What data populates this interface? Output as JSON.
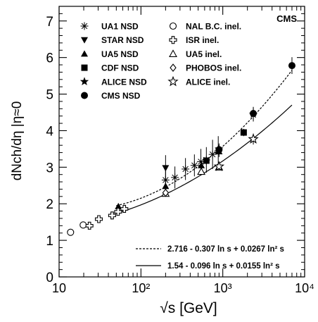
{
  "chart_data": {
    "type": "scatter",
    "experiment_label": "CMS",
    "xlabel": "√s [GeV]",
    "ylabel": "dNch/dη |η≈0",
    "xscale": "log",
    "xlim": [
      10,
      10000
    ],
    "ylim": [
      0,
      7.4
    ],
    "x_ticks": [
      10,
      100,
      1000,
      10000
    ],
    "x_tick_labels": [
      "10",
      "10²",
      "10³",
      "10⁴"
    ],
    "y_ticks": [
      0,
      1,
      2,
      3,
      4,
      5,
      6,
      7
    ],
    "y_tick_labels": [
      "0",
      "1",
      "2",
      "3",
      "4",
      "5",
      "6",
      "7"
    ],
    "legend_position": "top-left",
    "series": [
      {
        "name": "UA1 NSD",
        "marker": "asterisk",
        "x": [
          200,
          260,
          350,
          450,
          540,
          630,
          750,
          880
        ],
        "y": [
          2.65,
          2.72,
          2.95,
          3.05,
          3.15,
          3.2,
          3.35,
          3.45
        ],
        "err": [
          0.3,
          0.3,
          0.3,
          0.3,
          0.35,
          0.35,
          0.4,
          0.4
        ]
      },
      {
        "name": "STAR NSD",
        "marker": "triangle-down",
        "x": [
          200
        ],
        "y": [
          2.98
        ],
        "err": [
          0.35
        ]
      },
      {
        "name": "UA5 NSD",
        "marker": "triangle-up",
        "x": [
          53,
          200,
          546,
          900
        ],
        "y": [
          1.93,
          2.48,
          3.05,
          3.43
        ],
        "err": [
          0.05,
          0.1,
          0.1,
          0.15
        ]
      },
      {
        "name": "CDF NSD",
        "marker": "square",
        "x": [
          630,
          1800
        ],
        "y": [
          3.18,
          3.95
        ],
        "err": [
          0.1,
          0.1
        ]
      },
      {
        "name": "ALICE NSD",
        "marker": "star-filled",
        "x": [
          900,
          2360
        ],
        "y": [
          3.5,
          4.45
        ],
        "err": [
          0.15,
          0.2
        ]
      },
      {
        "name": "CMS NSD",
        "marker": "circle-filled",
        "x": [
          900,
          2360,
          7000
        ],
        "y": [
          3.48,
          4.47,
          5.78
        ],
        "err": [
          0.13,
          0.17,
          0.23
        ]
      },
      {
        "name": "NAL B.C. inel.",
        "marker": "circle-open",
        "x": [
          13.8,
          19.7
        ],
        "y": [
          1.22,
          1.42
        ],
        "err": [
          0,
          0
        ]
      },
      {
        "name": "ISR inel.",
        "marker": "cross-open",
        "x": [
          23.5,
          30.6,
          44.5,
          52.6,
          62.7
        ],
        "y": [
          1.4,
          1.58,
          1.68,
          1.78,
          1.86
        ],
        "err": [
          0,
          0,
          0,
          0,
          0
        ]
      },
      {
        "name": "UA5 inel.",
        "marker": "triangle-open",
        "x": [
          200,
          546,
          900
        ],
        "y": [
          2.28,
          2.88,
          3.0
        ],
        "err": [
          0,
          0,
          0
        ]
      },
      {
        "name": "PHOBOS inel.",
        "marker": "diamond-open",
        "x": [
          200
        ],
        "y": [
          2.3
        ],
        "err": [
          0
        ]
      },
      {
        "name": "ALICE inel.",
        "marker": "star-open",
        "x": [
          900,
          2360
        ],
        "y": [
          3.02,
          3.77
        ],
        "err": [
          0.1,
          0.15
        ]
      }
    ],
    "fits": [
      {
        "name": "2.716 - 0.307 ln s + 0.0267 ln² s",
        "style": "dashed",
        "a": 2.716,
        "b": -0.307,
        "c": 0.0267,
        "x_range": [
          50,
          7000
        ]
      },
      {
        "name": "1.54 - 0.096 ln s + 0.0155 ln² s",
        "style": "solid",
        "a": 1.54,
        "b": -0.096,
        "c": 0.0155,
        "x_range": [
          50,
          7000
        ]
      }
    ]
  }
}
